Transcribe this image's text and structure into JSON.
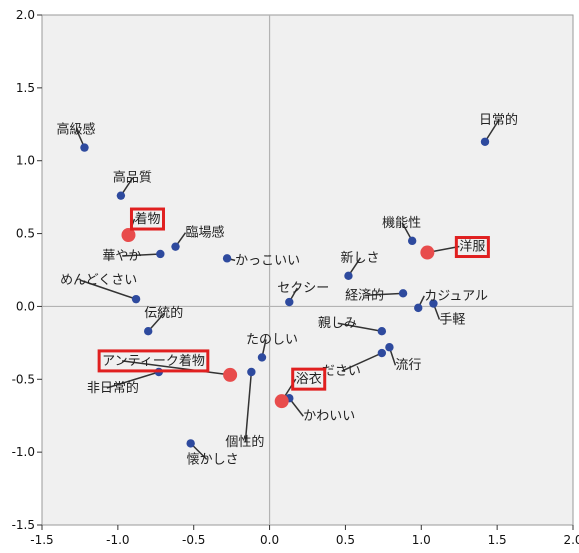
{
  "chart_data": {
    "type": "scatter",
    "title": "",
    "xlabel": "",
    "ylabel": "",
    "xlim": [
      -1.5,
      2.0
    ],
    "ylim": [
      -1.5,
      2.0
    ],
    "xticks": [
      -1.5,
      -1.0,
      -0.5,
      0.0,
      0.5,
      1.0,
      1.5,
      2.0
    ],
    "xtick_labels": [
      "-1.5",
      "-1.0",
      "-0.5",
      "0.0",
      "0.5",
      "1.0",
      "1.5",
      "2.0"
    ],
    "yticks": [
      -1.5,
      -1.0,
      -0.5,
      0.0,
      0.5,
      1.0,
      1.5,
      2.0
    ],
    "ytick_labels": [
      "-1.5",
      "-1.0",
      "-0.5",
      "0.0",
      "0.5",
      "1.0",
      "1.5",
      "2.0"
    ],
    "reference_lines": {
      "x": 0.0,
      "y": 0.0
    },
    "grid": false,
    "legend": "none",
    "colors": {
      "plot_background": "#f0f0f0",
      "attribute_point": "#2e4a9e",
      "category_point": "#e84c4c",
      "highlight_box": "#e02020",
      "reference_line": "#b3b3b3"
    },
    "series": [
      {
        "kind": "attribute",
        "points": [
          {
            "label": "高級感",
            "x": -1.22,
            "y": 1.09
          },
          {
            "label": "高品質",
            "x": -0.98,
            "y": 0.76
          },
          {
            "label": "臨場感",
            "x": -0.62,
            "y": 0.41
          },
          {
            "label": "華やか",
            "x": -0.72,
            "y": 0.36
          },
          {
            "label": "かっこいい",
            "x": -0.28,
            "y": 0.33
          },
          {
            "label": "めんどくさい",
            "x": -0.88,
            "y": 0.05
          },
          {
            "label": "伝統的",
            "x": -0.8,
            "y": -0.17
          },
          {
            "label": "非日常的",
            "x": -0.73,
            "y": -0.45
          },
          {
            "label": "たのしい",
            "x": -0.05,
            "y": -0.35
          },
          {
            "label": "個性的",
            "x": -0.12,
            "y": -0.45
          },
          {
            "label": "懐かしさ",
            "x": -0.52,
            "y": -0.94
          },
          {
            "label": "セクシー",
            "x": 0.13,
            "y": 0.03
          },
          {
            "label": "新しさ",
            "x": 0.52,
            "y": 0.21
          },
          {
            "label": "機能性",
            "x": 0.94,
            "y": 0.45
          },
          {
            "label": "経済的",
            "x": 0.88,
            "y": 0.09
          },
          {
            "label": "カジュアル",
            "x": 0.98,
            "y": -0.01
          },
          {
            "label": "手軽",
            "x": 1.08,
            "y": 0.02
          },
          {
            "label": "親しみ",
            "x": 0.74,
            "y": -0.17
          },
          {
            "label": "ださい",
            "x": 0.74,
            "y": -0.32
          },
          {
            "label": "流行",
            "x": 0.79,
            "y": -0.28
          },
          {
            "label": "かわいい",
            "x": 0.13,
            "y": -0.63
          },
          {
            "label": "日常的",
            "x": 1.42,
            "y": 1.13
          }
        ]
      },
      {
        "kind": "category",
        "points": [
          {
            "label": "着物",
            "x": -0.93,
            "y": 0.49
          },
          {
            "label": "洋服",
            "x": 1.04,
            "y": 0.37
          },
          {
            "label": "アンティーク着物",
            "x": -0.26,
            "y": -0.47
          },
          {
            "label": "浴衣",
            "x": 0.08,
            "y": -0.65
          }
        ]
      }
    ]
  }
}
